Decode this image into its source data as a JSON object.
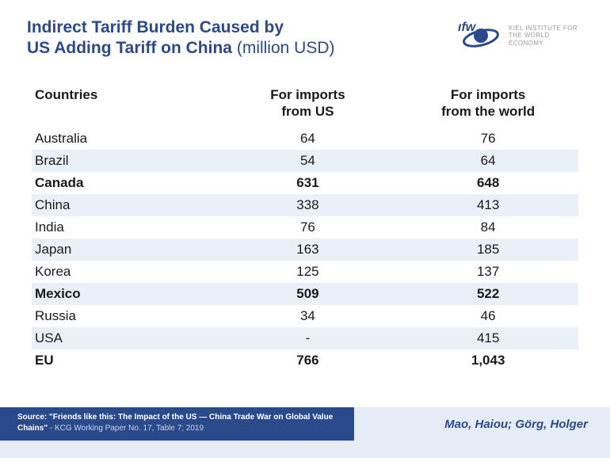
{
  "header": {
    "title_line1": "Indirect Tariff Burden Caused by",
    "title_line2": "US Adding Tariff on China",
    "unit": "(million USD)",
    "logo_text_line1": "KIEL INSTITUTE FOR",
    "logo_text_line2": "THE WORLD ECONOMY"
  },
  "table": {
    "columns": [
      {
        "label": "Countries",
        "align": "left"
      },
      {
        "label_l1": "For imports",
        "label_l2": "from US",
        "align": "center"
      },
      {
        "label_l1": "For imports",
        "label_l2": "from the world",
        "align": "center"
      }
    ],
    "rows": [
      {
        "country": "Australia",
        "us": "64",
        "world": "76",
        "bold": false,
        "alt": false
      },
      {
        "country": "Brazil",
        "us": "54",
        "world": "64",
        "bold": false,
        "alt": true
      },
      {
        "country": "Canada",
        "us": "631",
        "world": "648",
        "bold": true,
        "alt": false
      },
      {
        "country": "China",
        "us": "338",
        "world": "413",
        "bold": false,
        "alt": true
      },
      {
        "country": "India",
        "us": "76",
        "world": "84",
        "bold": false,
        "alt": false
      },
      {
        "country": "Japan",
        "us": "163",
        "world": "185",
        "bold": false,
        "alt": true
      },
      {
        "country": "Korea",
        "us": "125",
        "world": "137",
        "bold": false,
        "alt": false
      },
      {
        "country": "Mexico",
        "us": "509",
        "world": "522",
        "bold": true,
        "alt": true
      },
      {
        "country": "Russia",
        "us": "34",
        "world": "46",
        "bold": false,
        "alt": false
      },
      {
        "country": "USA",
        "us": "-",
        "world": "415",
        "bold": false,
        "alt": true
      },
      {
        "country": "EU",
        "us": "766",
        "world": "1,043",
        "bold": true,
        "alt": false
      }
    ],
    "colors": {
      "alt_row_bg": "#eaf0f8",
      "text": "#1a1a1a",
      "header_text": "#1a1a1a"
    }
  },
  "footer": {
    "source_label": "Source: ",
    "source_title": "\"Friends like this: The Impact of the US — China Trade War on Global Value Chains\"",
    "source_sub": " - KCG Working Paper No. 17, Table 7; 2019",
    "authors": "Mao, Haiou; Görg, Holger",
    "colors": {
      "source_bg": "#2b4a8c",
      "source_text": "#ffffff",
      "source_sub_text": "#c8d4ea",
      "authors_bg": "#e6ecf5",
      "authors_text": "#2b4a8c"
    }
  },
  "theme": {
    "title_color": "#2b4a8c",
    "background": "#ffffff"
  }
}
